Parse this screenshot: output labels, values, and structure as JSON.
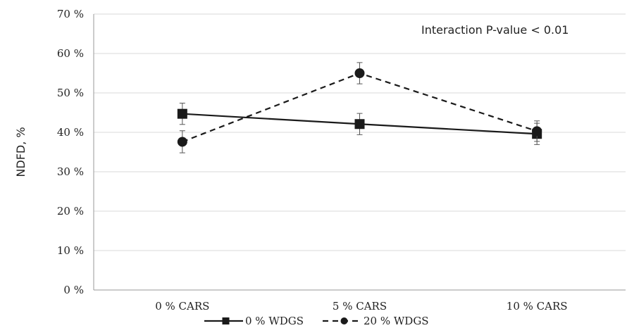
{
  "chart_data": {
    "type": "line",
    "title": "",
    "xlabel": "",
    "ylabel": "NDFD, %",
    "annotation": "Interaction P-value < 0.01",
    "categories": [
      "0 % CARS",
      "5 % CARS",
      "10 % CARS"
    ],
    "ylim": [
      0,
      70
    ],
    "yticks": [
      "0 %",
      "10 %",
      "20 %",
      "30 %",
      "40 %",
      "50 %",
      "60 %",
      "70 %"
    ],
    "ytick_values": [
      0,
      10,
      20,
      30,
      40,
      50,
      60,
      70
    ],
    "grid": "horizontal",
    "legend_position": "bottom",
    "series": [
      {
        "name": "0 % WDGS",
        "marker": "square",
        "line": "solid",
        "color": "#1a1a1a",
        "values": [
          44.7,
          42.1,
          39.6
        ],
        "errors": [
          2.7,
          2.7,
          2.7
        ]
      },
      {
        "name": "20 % WDGS",
        "marker": "circle",
        "line": "dashed",
        "color": "#1a1a1a",
        "values": [
          37.6,
          55.0,
          40.3
        ],
        "errors": [
          2.8,
          2.7,
          2.6
        ]
      }
    ]
  }
}
